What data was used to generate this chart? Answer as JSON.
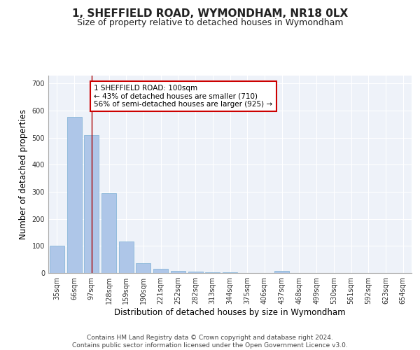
{
  "title": "1, SHEFFIELD ROAD, WYMONDHAM, NR18 0LX",
  "subtitle": "Size of property relative to detached houses in Wymondham",
  "xlabel": "Distribution of detached houses by size in Wymondham",
  "ylabel": "Number of detached properties",
  "categories": [
    "35sqm",
    "66sqm",
    "97sqm",
    "128sqm",
    "159sqm",
    "190sqm",
    "221sqm",
    "252sqm",
    "282sqm",
    "313sqm",
    "344sqm",
    "375sqm",
    "406sqm",
    "437sqm",
    "468sqm",
    "499sqm",
    "530sqm",
    "561sqm",
    "592sqm",
    "623sqm",
    "654sqm"
  ],
  "values": [
    100,
    575,
    510,
    295,
    115,
    35,
    15,
    8,
    4,
    3,
    3,
    0,
    0,
    8,
    0,
    0,
    0,
    0,
    0,
    0,
    0
  ],
  "bar_color": "#aec6e8",
  "bar_edge_color": "#7bafd4",
  "vline_x": 2.0,
  "vline_color": "#aa0000",
  "annotation_text": "1 SHEFFIELD ROAD: 100sqm\n← 43% of detached houses are smaller (710)\n56% of semi-detached houses are larger (925) →",
  "annotation_box_color": "#ffffff",
  "annotation_box_edge_color": "#cc0000",
  "ylim": [
    0,
    730
  ],
  "yticks": [
    0,
    100,
    200,
    300,
    400,
    500,
    600,
    700
  ],
  "footer_text": "Contains HM Land Registry data © Crown copyright and database right 2024.\nContains public sector information licensed under the Open Government Licence v3.0.",
  "background_color": "#eef2f9",
  "grid_color": "#ffffff",
  "title_fontsize": 11,
  "subtitle_fontsize": 9,
  "axis_label_fontsize": 8.5,
  "tick_fontsize": 7,
  "footer_fontsize": 6.5,
  "annotation_fontsize": 7.5
}
